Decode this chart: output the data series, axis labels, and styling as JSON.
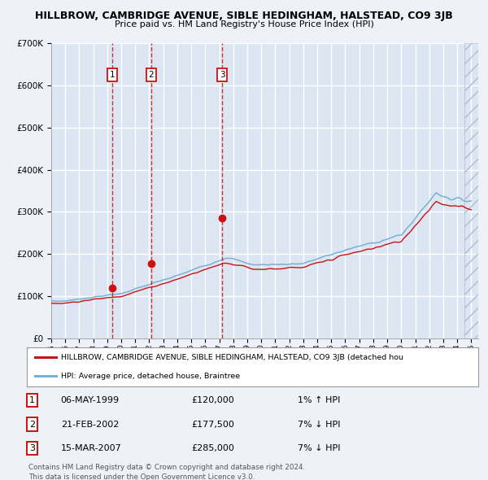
{
  "title": "HILLBROW, CAMBRIDGE AVENUE, SIBLE HEDINGHAM, HALSTEAD, CO9 3JB",
  "subtitle": "Price paid vs. HM Land Registry's House Price Index (HPI)",
  "background_color": "#eef2f8",
  "plot_bg_color": "#dce6f2",
  "grid_color": "#ffffff",
  "ylim": [
    0,
    700000
  ],
  "yticks": [
    0,
    100000,
    200000,
    300000,
    400000,
    500000,
    600000,
    700000
  ],
  "xlim_start": 1995.0,
  "xlim_end": 2025.5,
  "hpi_color": "#7ab0d4",
  "price_color": "#cc1111",
  "sale_marker_color": "#cc1111",
  "hatch_start": 2024.5,
  "sales": [
    {
      "id": 1,
      "year": 1999.36,
      "price": 120000,
      "date": "06-MAY-1999",
      "label": "£120,000",
      "hpi_rel": "1% ↑ HPI"
    },
    {
      "id": 2,
      "year": 2002.13,
      "price": 177500,
      "date": "21-FEB-2002",
      "label": "£177,500",
      "hpi_rel": "7% ↓ HPI"
    },
    {
      "id": 3,
      "year": 2007.21,
      "price": 285000,
      "date": "15-MAR-2007",
      "label": "£285,000",
      "hpi_rel": "7% ↓ HPI"
    }
  ],
  "legend_line1": "HILLBROW, CAMBRIDGE AVENUE, SIBLE HEDINGHAM, HALSTEAD, CO9 3JB (detached hou",
  "legend_line2": "HPI: Average price, detached house, Braintree",
  "footnote": "Contains HM Land Registry data © Crown copyright and database right 2024.\nThis data is licensed under the Open Government Licence v3.0."
}
